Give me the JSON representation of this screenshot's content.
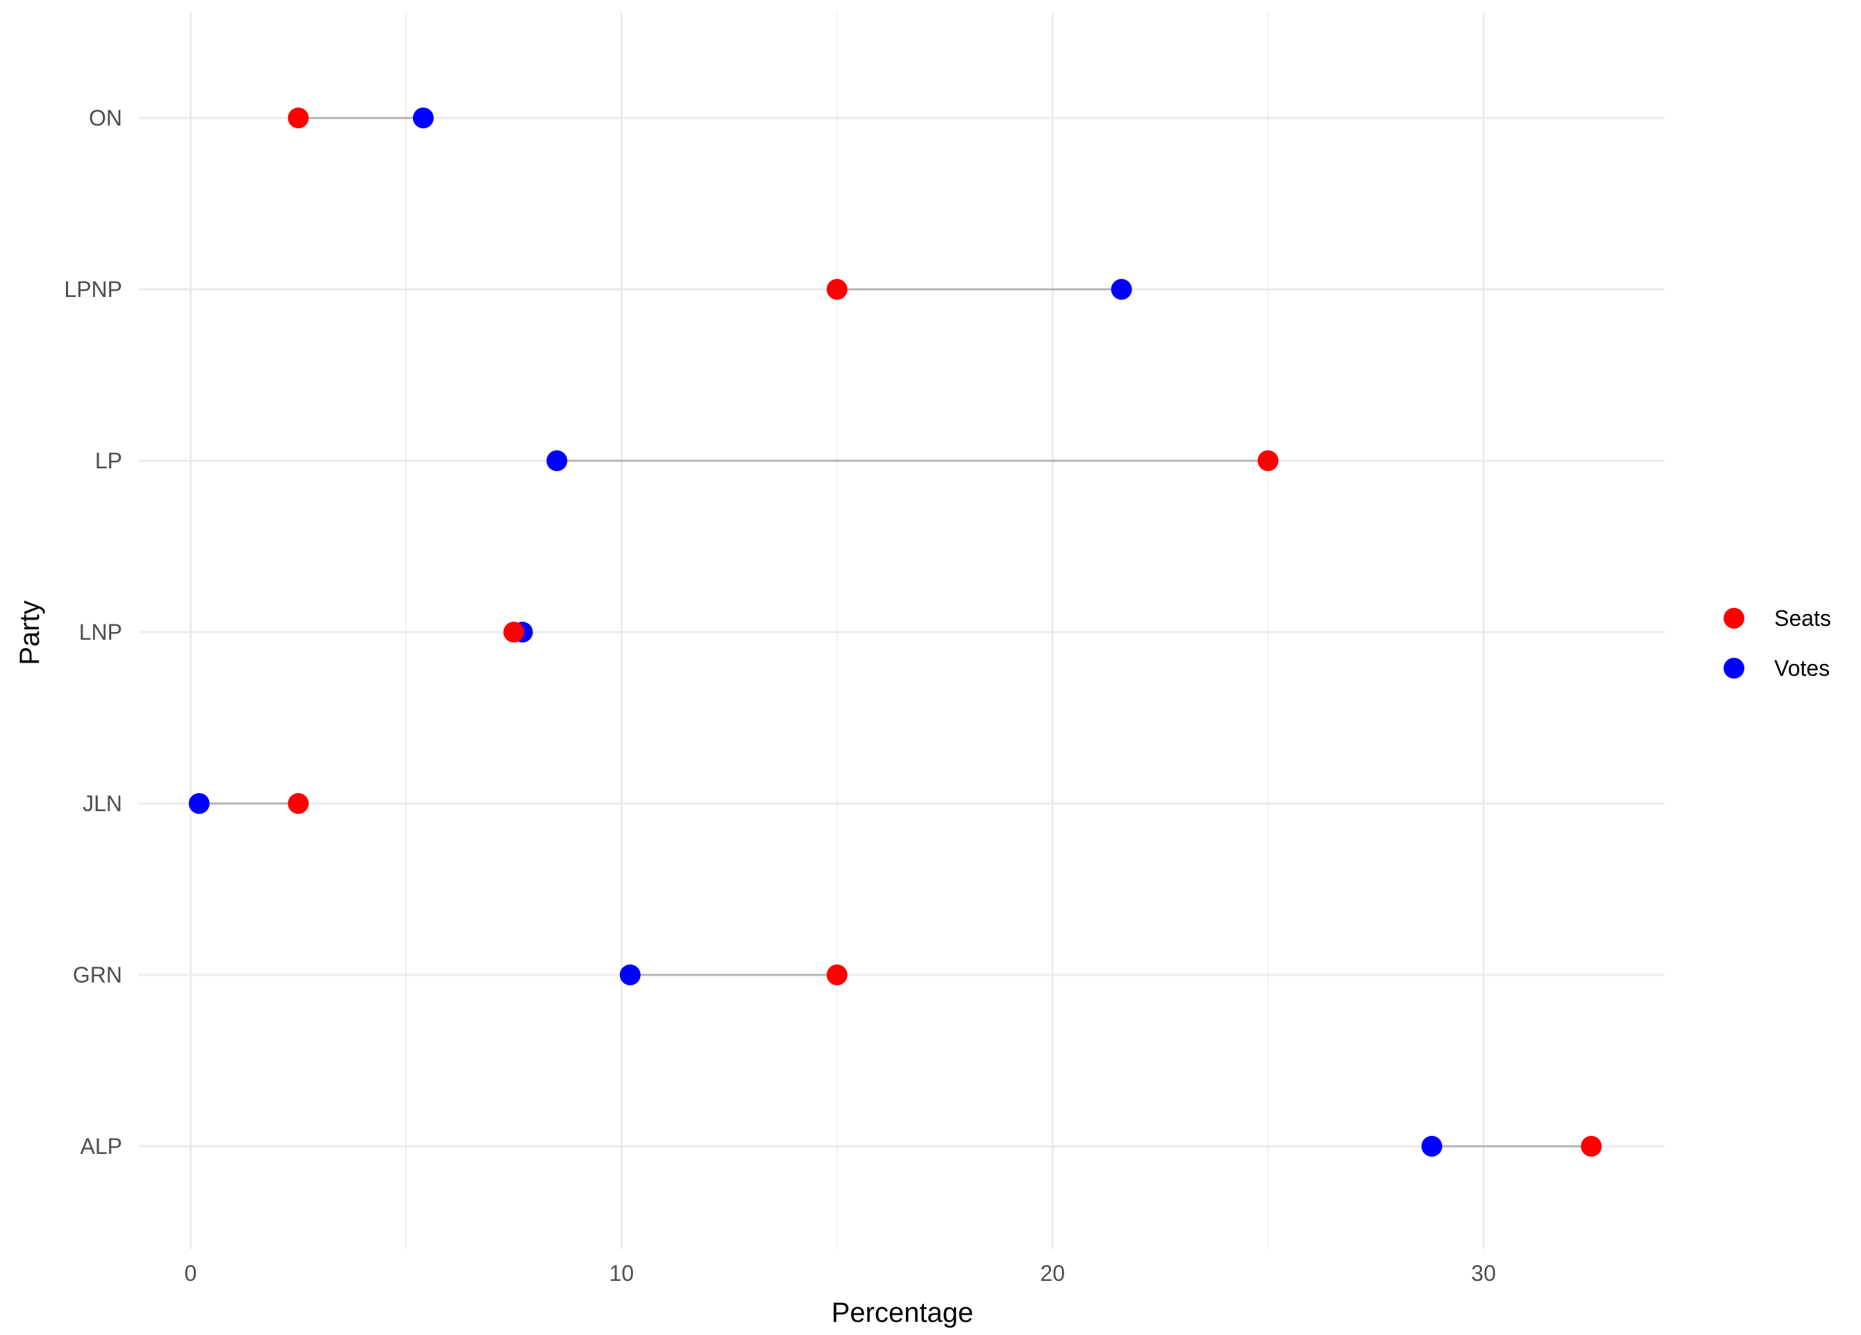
{
  "chart_data": {
    "type": "scatter",
    "subtype": "dumbbell",
    "title": "",
    "xlabel": "Percentage",
    "ylabel": "Party",
    "xlim": [
      -1.2,
      34.2
    ],
    "xticks": [
      0,
      10,
      20,
      30
    ],
    "categories": [
      "ON",
      "LPNP",
      "LP",
      "LNP",
      "JLN",
      "GRN",
      "ALP"
    ],
    "series": [
      {
        "name": "Seats",
        "color": "#ff0000",
        "values": [
          2.5,
          15.0,
          25.0,
          7.5,
          2.5,
          15.0,
          32.5
        ]
      },
      {
        "name": "Votes",
        "color": "#0000ff",
        "values": [
          5.4,
          21.6,
          8.5,
          7.7,
          0.2,
          10.2,
          28.8
        ]
      }
    ],
    "connector_color": "#b3b3b3",
    "grid": true,
    "legend_position": "right",
    "legend_entries": [
      "Seats",
      "Votes"
    ]
  }
}
